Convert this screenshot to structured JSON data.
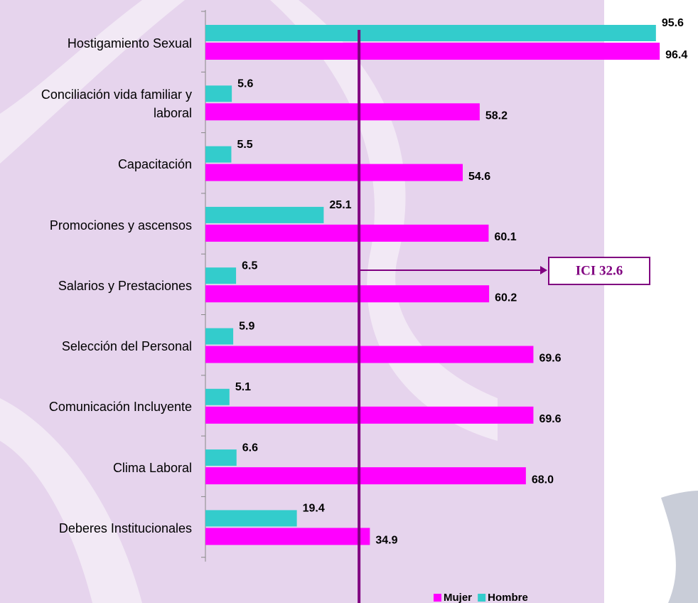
{
  "chart_data": {
    "type": "bar",
    "orientation": "horizontal",
    "categories": [
      "Hostigamiento Sexual",
      "Conciliación vida familiar y laboral",
      "Capacitación",
      "Promociones y ascensos",
      "Salarios y Prestaciones",
      "Selección del Personal",
      "Comunicación Incluyente",
      "Clima Laboral",
      "Deberes Institucionales"
    ],
    "series": [
      {
        "name": "Mujer",
        "color": "#ff00ff",
        "values": [
          96.4,
          58.2,
          54.6,
          60.1,
          60.2,
          69.6,
          69.6,
          68,
          34.9
        ],
        "value_labels": [
          "96.4",
          "58.2",
          "54.6",
          "60.1",
          "60.2",
          "69.6",
          "69.6",
          "68.0",
          "34.9"
        ]
      },
      {
        "name": "Hombre",
        "color": "#33cccc",
        "values": [
          95.6,
          5.6,
          5.5,
          25.1,
          6.5,
          5.9,
          5.1,
          6.6,
          19.4
        ],
        "value_labels": [
          "95.6",
          "5.6",
          "5.5",
          "25.1",
          "6.5",
          "5.9",
          "5.1",
          "6.6",
          "19.4"
        ]
      }
    ],
    "reference_line": {
      "value": 32.6,
      "label": "ICI 32.6",
      "color": "#800080"
    },
    "legend": "bottom-right"
  }
}
